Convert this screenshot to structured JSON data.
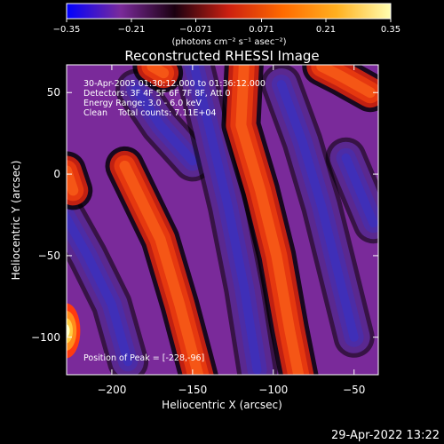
{
  "chart_data": {
    "type": "heatmap",
    "title": "Reconstructed RHESSI Image",
    "xlabel": "Heliocentric X (arcsec)",
    "ylabel": "Heliocentric Y (arcsec)",
    "xlim": [
      -228,
      -35
    ],
    "ylim": [
      -123,
      67
    ],
    "x_ticks": [
      -200,
      -150,
      -100,
      -50
    ],
    "y_ticks": [
      50,
      0,
      -50,
      -100
    ],
    "colorbar": {
      "label": "(photons cm⁻² s⁻¹ asec⁻²)",
      "ticks": [
        "-0.35",
        "-0.21",
        "-0.071",
        "0.071",
        "0.21",
        "0.35"
      ],
      "range": [
        -0.35,
        0.35
      ],
      "stops": [
        "#0000ff",
        "#7a2a9a",
        "#1a0010",
        "#cc2010",
        "#ff6a00",
        "#ffb020",
        "#ffffb0"
      ]
    },
    "annotations": [
      "30-Apr-2005 01:30:12.000 to 01:36:12.000",
      "Detectors: 3F 4F 5F 6F 7F 8F, Att 0",
      "Energy Range: 3.0 - 6.0 keV",
      "Clean    Total counts: 7.11E+04",
      "Position of Peak = [-228,-96]"
    ],
    "peak": {
      "x": -228,
      "y": -96,
      "value": 0.35
    },
    "lobes_positive": [
      [
        [
          -118,
          70
        ],
        [
          -120,
          30
        ],
        [
          -108,
          -10
        ],
        [
          -98,
          -50
        ],
        [
          -90,
          -95
        ],
        [
          -84,
          -125
        ]
      ],
      [
        [
          -192,
          5
        ],
        [
          -170,
          -40
        ],
        [
          -158,
          -80
        ],
        [
          -150,
          -110
        ],
        [
          -146,
          -125
        ]
      ],
      [
        [
          -228,
          2
        ],
        [
          -224,
          -10
        ]
      ],
      [
        [
          -175,
          66
        ],
        [
          -168,
          62
        ]
      ],
      [
        [
          -70,
          66
        ],
        [
          -58,
          60
        ],
        [
          -40,
          50
        ]
      ]
    ],
    "lobes_negative": [
      [
        [
          -185,
          52
        ],
        [
          -170,
          30
        ],
        [
          -150,
          8
        ]
      ],
      [
        [
          -232,
          -20
        ],
        [
          -215,
          -50
        ],
        [
          -200,
          -80
        ],
        [
          -190,
          -115
        ]
      ],
      [
        [
          -150,
          70
        ],
        [
          -140,
          30
        ],
        [
          -128,
          -20
        ],
        [
          -118,
          -70
        ],
        [
          -110,
          -120
        ]
      ],
      [
        [
          -95,
          55
        ],
        [
          -82,
          20
        ],
        [
          -70,
          -20
        ],
        [
          -60,
          -60
        ],
        [
          -50,
          -100
        ]
      ],
      [
        [
          -55,
          10
        ],
        [
          -38,
          -30
        ]
      ]
    ]
  },
  "footer": {
    "timestamp": "29-Apr-2022 13:22"
  }
}
